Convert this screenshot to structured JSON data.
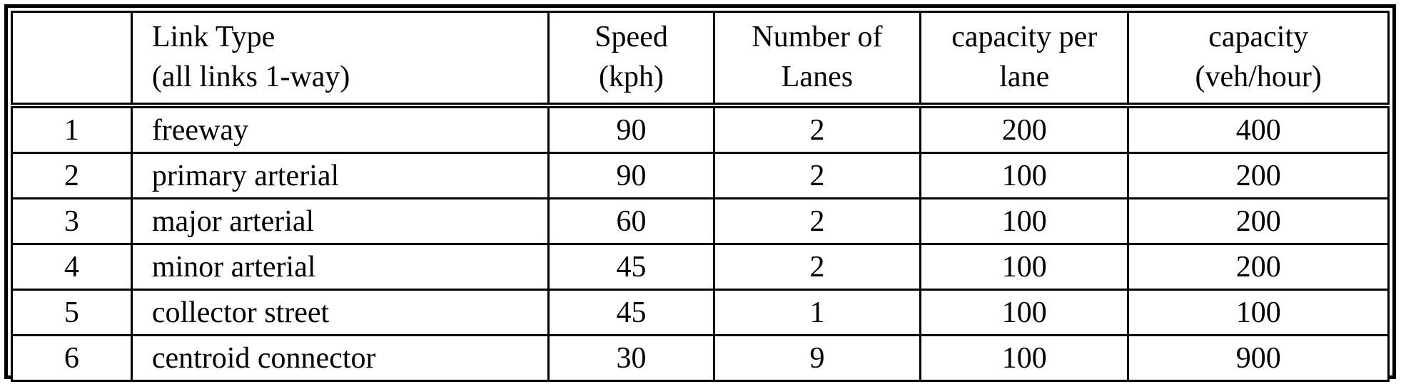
{
  "colors": {
    "border": "#000000",
    "text": "#000000",
    "background": "#ffffff"
  },
  "table": {
    "columns": [
      {
        "line1": "",
        "line2": ""
      },
      {
        "line1": "Link Type",
        "line2": "(all links 1-way)"
      },
      {
        "line1": "Speed",
        "line2": "(kph)"
      },
      {
        "line1": "Number of",
        "line2": "Lanes"
      },
      {
        "line1": "capacity per",
        "line2": "lane"
      },
      {
        "line1": "capacity",
        "line2": "(veh/hour)"
      }
    ],
    "rows": [
      {
        "num": "1",
        "link_type": "freeway",
        "speed": "90",
        "lanes": "2",
        "cap_per_lane": "200",
        "capacity": "400"
      },
      {
        "num": "2",
        "link_type": "primary arterial",
        "speed": "90",
        "lanes": "2",
        "cap_per_lane": "100",
        "capacity": "200"
      },
      {
        "num": "3",
        "link_type": "major arterial",
        "speed": "60",
        "lanes": "2",
        "cap_per_lane": "100",
        "capacity": "200"
      },
      {
        "num": "4",
        "link_type": "minor arterial",
        "speed": "45",
        "lanes": "2",
        "cap_per_lane": "100",
        "capacity": "200"
      },
      {
        "num": "5",
        "link_type": "collector street",
        "speed": "45",
        "lanes": "1",
        "cap_per_lane": "100",
        "capacity": "100"
      },
      {
        "num": "6",
        "link_type": "centroid connector",
        "speed": "30",
        "lanes": "9",
        "cap_per_lane": "100",
        "capacity": "900"
      }
    ]
  }
}
